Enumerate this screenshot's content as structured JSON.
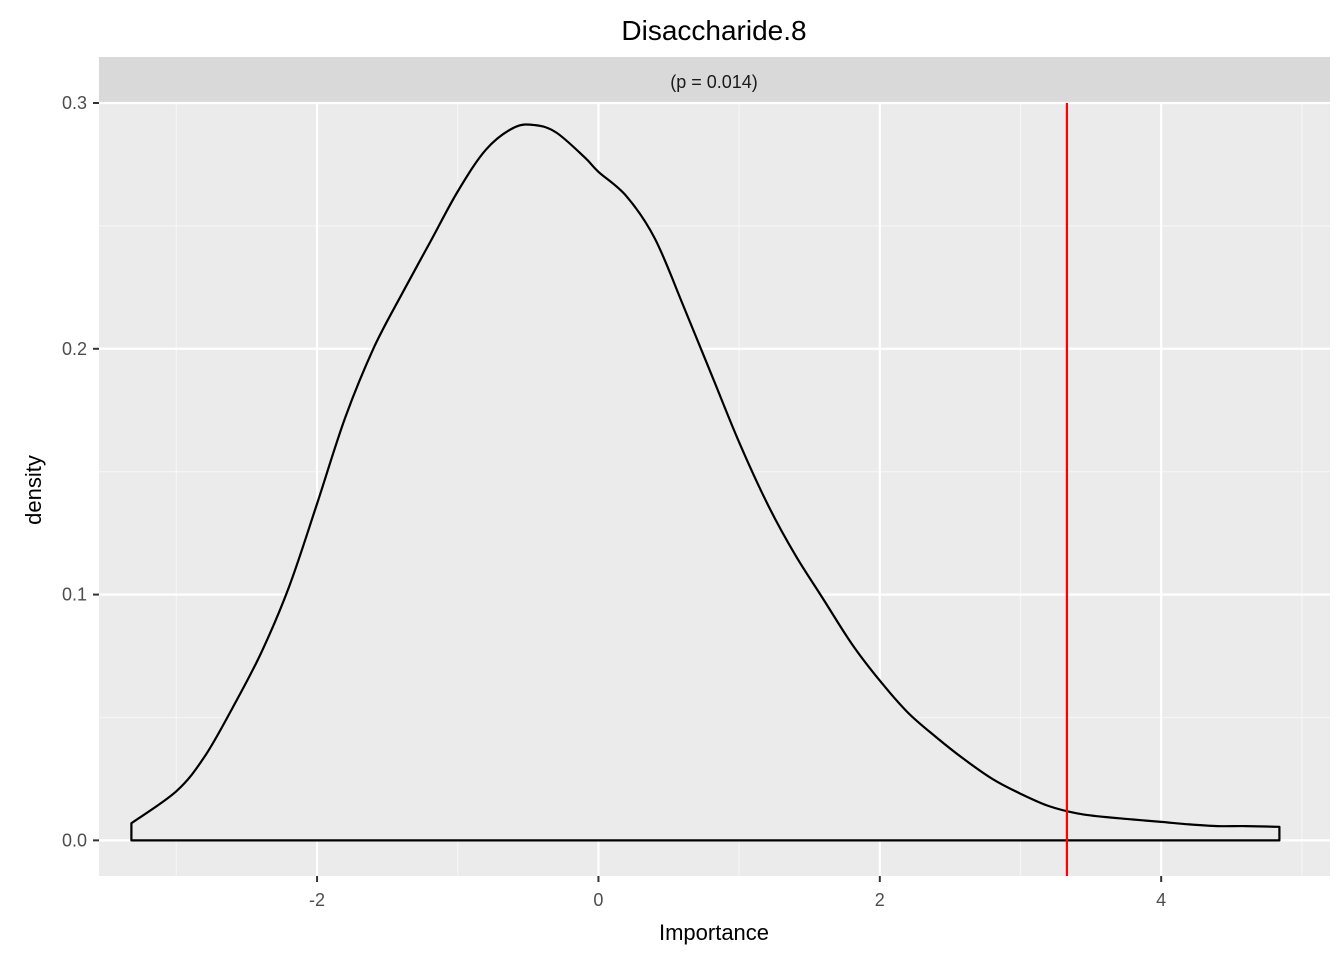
{
  "chart_data": {
    "type": "area",
    "title": "Disaccharide.8",
    "facet_label": "(p = 0.014)",
    "xlabel": "Importance",
    "ylabel": "density",
    "xlim": [
      -3.55,
      5.2
    ],
    "ylim": [
      -0.0145,
      0.3
    ],
    "x_ticks": [
      -2,
      0,
      2,
      4
    ],
    "x_tick_labels": [
      "-2",
      "0",
      "2",
      "4"
    ],
    "y_ticks": [
      0.0,
      0.1,
      0.2,
      0.3
    ],
    "y_tick_labels": [
      "0.0",
      "0.1",
      "0.2",
      "0.3"
    ],
    "grid": true,
    "vline": {
      "x": 3.33,
      "color": "#ff0000"
    },
    "density": {
      "x": [
        -3.32,
        -3.0,
        -2.8,
        -2.6,
        -2.4,
        -2.2,
        -2.0,
        -1.8,
        -1.6,
        -1.4,
        -1.2,
        -1.0,
        -0.8,
        -0.6,
        -0.45,
        -0.3,
        -0.1,
        0.0,
        0.2,
        0.4,
        0.6,
        0.8,
        1.0,
        1.2,
        1.4,
        1.6,
        1.8,
        2.0,
        2.2,
        2.4,
        2.6,
        2.8,
        3.0,
        3.2,
        3.4,
        3.6,
        3.8,
        4.0,
        4.2,
        4.4,
        4.6,
        4.84
      ],
      "y": [
        0.007,
        0.02,
        0.034,
        0.054,
        0.076,
        0.103,
        0.137,
        0.172,
        0.2,
        0.222,
        0.243,
        0.264,
        0.281,
        0.29,
        0.291,
        0.288,
        0.278,
        0.272,
        0.262,
        0.245,
        0.218,
        0.19,
        0.162,
        0.137,
        0.116,
        0.098,
        0.08,
        0.065,
        0.052,
        0.042,
        0.033,
        0.025,
        0.019,
        0.014,
        0.011,
        0.0095,
        0.0085,
        0.0075,
        0.0065,
        0.0058,
        0.0058,
        0.0055
      ],
      "fill": "#ebebeb",
      "stroke": "#000000"
    },
    "colors": {
      "panel_background": "#ebebeb",
      "strip_background": "#d9d9d9",
      "grid_major": "#ffffff",
      "grid_minor": "#f5f5f5"
    }
  }
}
